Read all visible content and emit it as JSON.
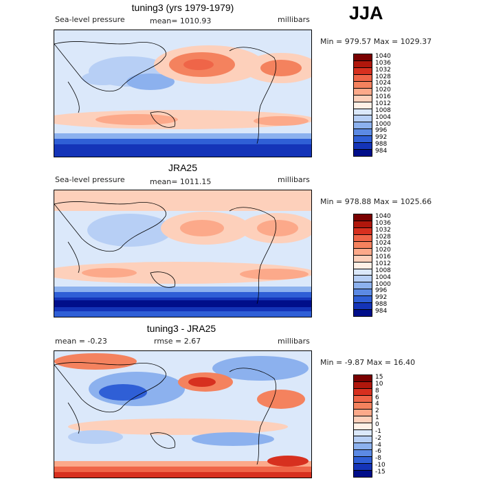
{
  "season": "JJA",
  "panels": [
    {
      "title": "tuning3 (yrs 1979-1979)",
      "left": "Sea-level pressure",
      "mid": "mean= 1010.93",
      "units": "millibars",
      "minmax": "Min = 979.57 Max = 1029.37",
      "levels": [
        "1040",
        "1036",
        "1032",
        "1028",
        "1024",
        "1020",
        "1016",
        "1012",
        "1008",
        "1004",
        "1000",
        "996",
        "992",
        "988",
        "984"
      ]
    },
    {
      "title": "JRA25",
      "left": "Sea-level pressure",
      "mid": "mean= 1011.15",
      "units": "millibars",
      "minmax": "Min = 978.88 Max = 1025.66",
      "levels": [
        "1040",
        "1036",
        "1032",
        "1028",
        "1024",
        "1020",
        "1016",
        "1012",
        "1008",
        "1004",
        "1000",
        "996",
        "992",
        "988",
        "984"
      ]
    },
    {
      "title": "tuning3 - JRA25",
      "left": "mean =  -0.23",
      "mid": "rmse =   2.67",
      "units": "millibars",
      "minmax": "Min =  -9.87 Max =  16.40",
      "levels": [
        "15",
        "10",
        "8",
        "6",
        "4",
        "2",
        "1",
        "0",
        "-1",
        "-2",
        "-4",
        "-6",
        "-8",
        "-10",
        "-15"
      ]
    }
  ],
  "colors": {
    "scale": [
      "#7a0000",
      "#b0170c",
      "#d7301f",
      "#ef6548",
      "#f4825e",
      "#fca98a",
      "#fdd0bb",
      "#fff0e6",
      "#dbe8fa",
      "#b7cff5",
      "#8cb1ee",
      "#5c8ae4",
      "#2f5fd6",
      "#1434b8",
      "#000e8a"
    ]
  }
}
